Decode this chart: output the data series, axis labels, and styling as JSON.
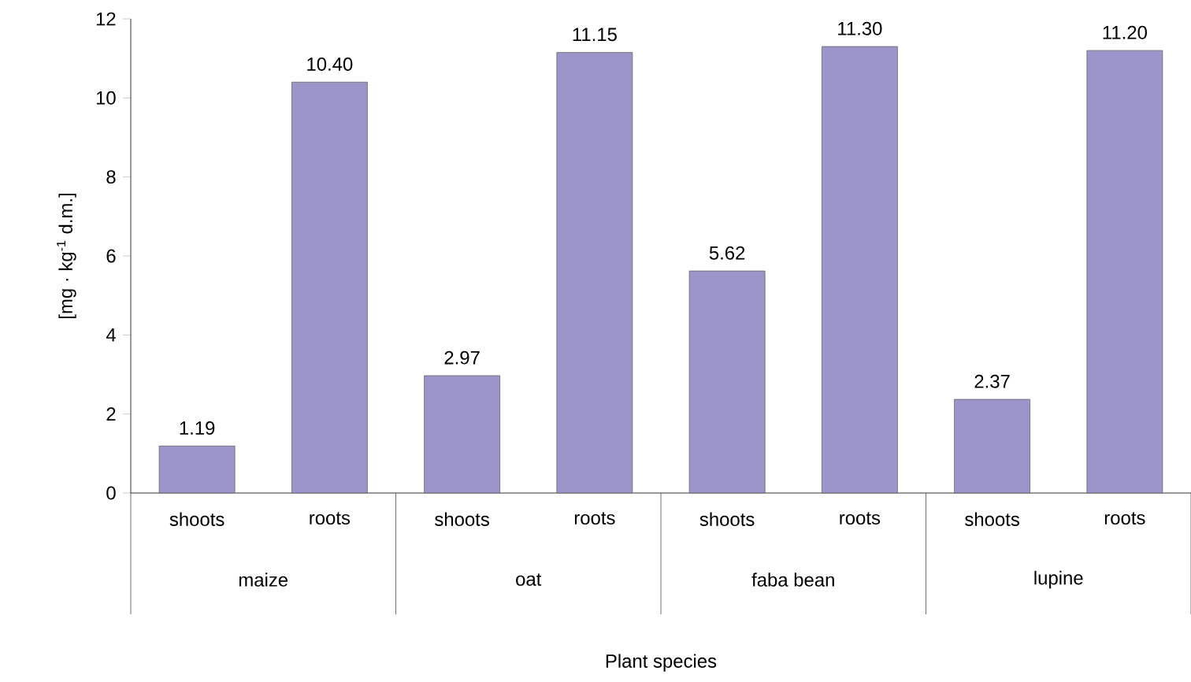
{
  "chart_data": {
    "type": "bar",
    "ylabel": "[mg · kg$^{-1}$ d.m.]",
    "categories": [
      "shoots",
      "roots",
      "shoots",
      "roots",
      "shoots",
      "roots",
      "shoots",
      "roots"
    ],
    "values": [
      1.19,
      10.4,
      2.97,
      11.15,
      5.62,
      11.3,
      2.37,
      11.2
    ],
    "value_labels": [
      "1.19",
      "10.40",
      "2.97",
      "11.15",
      "5.62",
      "11.30",
      "2.37",
      "11.20"
    ],
    "color": "#9b95c9",
    "ylim": [
      0,
      12
    ],
    "yticks": [
      0,
      2,
      4,
      6,
      8,
      10,
      12
    ],
    "annotations": [
      "maize",
      "oat",
      "faba bean",
      "lupine",
      "Plant species"
    ]
  }
}
